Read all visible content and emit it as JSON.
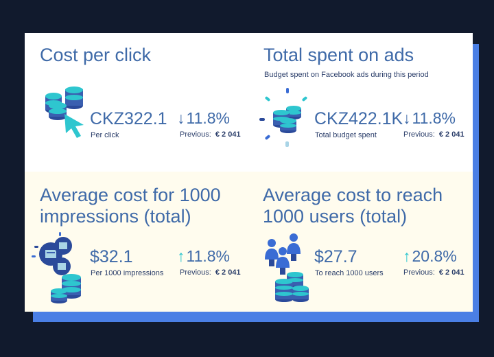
{
  "colors": {
    "background": "#111a2d",
    "accent_blue": "#4a7fe5",
    "title_blue": "#3f6aa8",
    "text_dark": "#2b3e6a",
    "teal": "#2ec6cf",
    "bottom_bg": "#fffcee"
  },
  "cards": [
    {
      "title": "Cost per click",
      "subtitle": "",
      "value": "CKZ322.1",
      "value_label": "Per click",
      "change_direction": "down",
      "change": "11.8%",
      "previous_label": "Previous:",
      "previous_value": "€ 2 041",
      "icon": "coins-cursor-icon"
    },
    {
      "title": "Total spent on ads",
      "subtitle": "Budget spent on Facebook ads during this period",
      "value": "CKZ422.1K",
      "value_label": "Total budget spent",
      "change_direction": "down",
      "change": "11.8%",
      "previous_label": "Previous:",
      "previous_value": "€ 2 041",
      "icon": "coins-sparkle-icon"
    },
    {
      "title_line1": "Average cost for 1000",
      "title_line2": "impressions (total)",
      "value": "$32.1",
      "value_label": "Per 1000 impressions",
      "change_direction": "up",
      "change": "11.8%",
      "previous_label": "Previous:",
      "previous_value": "€ 2 041",
      "icon": "impressions-coins-icon"
    },
    {
      "title_line1": "Average cost to reach",
      "title_line2": "1000 users (total)",
      "value": "$27.7",
      "value_label": "To reach 1000 users",
      "change_direction": "up",
      "change": "20.8%",
      "previous_label": "Previous:",
      "previous_value": "€ 2 041",
      "icon": "users-coins-icon"
    }
  ],
  "arrows": {
    "down": "↓",
    "up": "↑"
  }
}
